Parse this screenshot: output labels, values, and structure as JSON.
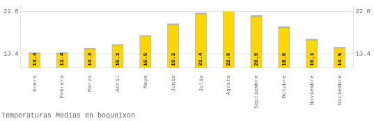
{
  "chart_data": {
    "type": "bar",
    "title": "Temperaturas Medias en boqueixon",
    "categories": [
      "Enero",
      "Febrero",
      "Marzo",
      "Abril",
      "Mayo",
      "Junio",
      "Julio",
      "Agosto",
      "Septiembre",
      "Octubre",
      "Noviembre",
      "Diciembre"
    ],
    "series": [
      {
        "color": "#B0B8C0",
        "values": [
          13.7,
          13.7,
          14.6,
          15.4,
          17.2,
          19.6,
          21.8,
          22.0,
          21.3,
          19.0,
          16.5,
          14.8
        ]
      },
      {
        "color": "#FFD700",
        "values": [
          13.4,
          13.4,
          14.3,
          15.1,
          16.9,
          19.2,
          21.4,
          22.0,
          20.9,
          18.6,
          16.1,
          14.5
        ],
        "data_labels": true,
        "value_labels": [
          "13.4",
          "13.4",
          "14.3",
          "15.1",
          "16.9",
          "19.2",
          "21.4",
          "22.0",
          "20.9",
          "18.6",
          "16.1",
          "14.5"
        ]
      }
    ],
    "ylim": [
      10.5,
      23.2
    ],
    "yticks": [
      13.4,
      {
        "value": 22.0,
        "label": "22.0"
      }
    ],
    "y2lim": [
      10.5,
      23.2
    ],
    "y2ticks": [
      13.4,
      {
        "value": 22.0,
        "label": "22.0"
      }
    ],
    "grid": true
  }
}
